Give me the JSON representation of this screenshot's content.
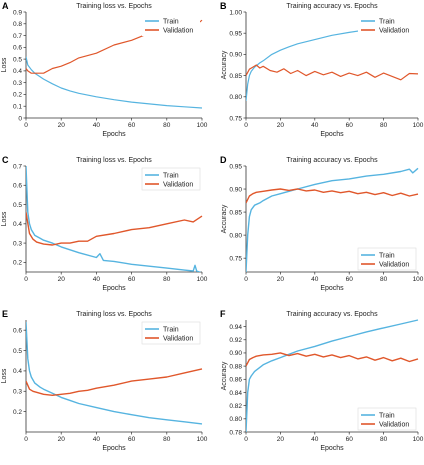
{
  "colors": {
    "train": "#56b4e0",
    "validation": "#e0572b"
  },
  "chart_data": [
    {
      "panel": "A",
      "type": "line",
      "title": "Training loss vs. Epochs",
      "xlabel": "Epochs",
      "ylabel": "Loss",
      "xlim": [
        0,
        100
      ],
      "ylim": [
        0,
        0.9
      ],
      "xticks": [
        0,
        20,
        40,
        60,
        80,
        100
      ],
      "yticks": [
        0,
        0.1,
        0.2,
        0.3,
        0.4,
        0.5,
        0.6,
        0.7,
        0.8,
        0.9
      ],
      "legend": "top-right",
      "legend_style": "plain",
      "series": [
        {
          "name": "Train",
          "color": "#56b4e0",
          "x": [
            0,
            1,
            3,
            5,
            10,
            15,
            20,
            25,
            30,
            40,
            50,
            60,
            70,
            80,
            90,
            100
          ],
          "y": [
            0.52,
            0.45,
            0.41,
            0.38,
            0.33,
            0.29,
            0.255,
            0.23,
            0.21,
            0.18,
            0.155,
            0.135,
            0.12,
            0.105,
            0.095,
            0.085
          ]
        },
        {
          "name": "Validation",
          "color": "#e0572b",
          "x": [
            0,
            1,
            3,
            5,
            10,
            15,
            20,
            25,
            30,
            40,
            50,
            60,
            70,
            76,
            80,
            85,
            90,
            95,
            100
          ],
          "y": [
            0.42,
            0.4,
            0.38,
            0.38,
            0.38,
            0.42,
            0.44,
            0.47,
            0.51,
            0.55,
            0.62,
            0.66,
            0.72,
            0.78,
            0.74,
            0.79,
            0.71,
            0.77,
            0.83
          ]
        }
      ]
    },
    {
      "panel": "B",
      "type": "line",
      "title": "Training accuracy vs. Epochs",
      "xlabel": "Epochs",
      "ylabel": "Accuracy",
      "xlim": [
        0,
        100
      ],
      "ylim": [
        0.75,
        1.0
      ],
      "xticks": [
        0,
        20,
        40,
        60,
        80,
        100
      ],
      "yticks": [
        0.75,
        0.8,
        0.85,
        0.9,
        0.95,
        1.0
      ],
      "legend": "top-right",
      "legend_style": "plain",
      "series": [
        {
          "name": "Train",
          "color": "#56b4e0",
          "x": [
            0,
            1,
            2,
            3,
            5,
            8,
            10,
            15,
            20,
            25,
            30,
            40,
            50,
            60,
            70
          ],
          "y": [
            0.79,
            0.83,
            0.85,
            0.86,
            0.87,
            0.88,
            0.885,
            0.9,
            0.91,
            0.918,
            0.925,
            0.935,
            0.945,
            0.952,
            0.958
          ]
        },
        {
          "name": "Validation",
          "color": "#e0572b",
          "x": [
            0,
            2,
            4,
            6,
            8,
            10,
            14,
            18,
            22,
            26,
            30,
            35,
            40,
            45,
            50,
            55,
            60,
            65,
            70,
            75,
            80,
            85,
            90,
            95,
            100
          ],
          "y": [
            0.85,
            0.865,
            0.87,
            0.875,
            0.868,
            0.872,
            0.862,
            0.858,
            0.866,
            0.855,
            0.862,
            0.85,
            0.86,
            0.852,
            0.858,
            0.848,
            0.856,
            0.85,
            0.858,
            0.846,
            0.856,
            0.848,
            0.84,
            0.855,
            0.854
          ]
        }
      ]
    },
    {
      "panel": "C",
      "type": "line",
      "title": "Training loss vs. Epochs",
      "xlabel": "Epochs",
      "ylabel": "Loss",
      "xlim": [
        0,
        100
      ],
      "ylim": [
        0.15,
        0.7
      ],
      "xticks": [
        0,
        20,
        40,
        60,
        80,
        100
      ],
      "yticks": [
        0.2,
        0.3,
        0.4,
        0.5,
        0.6,
        0.7
      ],
      "legend": "top-right",
      "legend_style": "box",
      "series": [
        {
          "name": "Train",
          "color": "#56b4e0",
          "x": [
            0,
            1,
            2,
            3,
            5,
            8,
            10,
            15,
            20,
            25,
            30,
            40,
            42,
            44,
            50,
            60,
            70,
            80,
            90,
            95,
            96,
            97,
            100
          ],
          "y": [
            0.7,
            0.46,
            0.4,
            0.37,
            0.34,
            0.325,
            0.315,
            0.3,
            0.28,
            0.265,
            0.25,
            0.225,
            0.245,
            0.21,
            0.205,
            0.19,
            0.18,
            0.17,
            0.16,
            0.155,
            0.185,
            0.155,
            0.145
          ]
        },
        {
          "name": "Validation",
          "color": "#e0572b",
          "x": [
            0,
            2,
            4,
            6,
            10,
            15,
            20,
            25,
            30,
            35,
            40,
            50,
            60,
            70,
            80,
            90,
            95,
            100
          ],
          "y": [
            0.46,
            0.35,
            0.32,
            0.305,
            0.295,
            0.29,
            0.3,
            0.3,
            0.31,
            0.31,
            0.335,
            0.35,
            0.37,
            0.38,
            0.4,
            0.42,
            0.41,
            0.44
          ]
        }
      ]
    },
    {
      "panel": "D",
      "type": "line",
      "title": "Training accuracy vs. Epochs",
      "xlabel": "Epochs",
      "ylabel": "Accuracy",
      "xlim": [
        0,
        100
      ],
      "ylim": [
        0.72,
        0.95
      ],
      "xticks": [
        0,
        20,
        40,
        60,
        80,
        100
      ],
      "yticks": [
        0.75,
        0.8,
        0.85,
        0.9,
        0.95
      ],
      "legend": "bottom-right",
      "legend_style": "box",
      "series": [
        {
          "name": "Train",
          "color": "#56b4e0",
          "x": [
            0,
            1,
            2,
            3,
            5,
            8,
            10,
            15,
            20,
            25,
            30,
            40,
            50,
            60,
            70,
            80,
            90,
            95,
            97,
            100
          ],
          "y": [
            0.72,
            0.8,
            0.84,
            0.855,
            0.865,
            0.87,
            0.875,
            0.885,
            0.89,
            0.895,
            0.9,
            0.91,
            0.918,
            0.922,
            0.928,
            0.932,
            0.938,
            0.943,
            0.935,
            0.945
          ]
        },
        {
          "name": "Validation",
          "color": "#e0572b",
          "x": [
            0,
            2,
            4,
            6,
            10,
            15,
            20,
            25,
            30,
            35,
            40,
            45,
            50,
            55,
            60,
            65,
            70,
            75,
            80,
            85,
            90,
            95,
            100
          ],
          "y": [
            0.87,
            0.885,
            0.89,
            0.893,
            0.895,
            0.898,
            0.9,
            0.897,
            0.9,
            0.896,
            0.898,
            0.893,
            0.896,
            0.892,
            0.895,
            0.89,
            0.893,
            0.888,
            0.892,
            0.886,
            0.891,
            0.885,
            0.889
          ]
        }
      ]
    },
    {
      "panel": "E",
      "type": "line",
      "title": "Training loss vs. Epochs",
      "xlabel": "Epochs",
      "ylabel": "Loss",
      "xlim": [
        0,
        100
      ],
      "ylim": [
        0.1,
        0.65
      ],
      "xticks": [
        0,
        20,
        40,
        60,
        80,
        100
      ],
      "yticks": [
        0.2,
        0.3,
        0.4,
        0.5,
        0.6
      ],
      "legend": "top-right",
      "legend_style": "box",
      "series": [
        {
          "name": "Train",
          "color": "#56b4e0",
          "x": [
            0,
            1,
            2,
            3,
            5,
            8,
            10,
            15,
            20,
            25,
            30,
            40,
            50,
            60,
            70,
            80,
            90,
            100
          ],
          "y": [
            0.64,
            0.46,
            0.4,
            0.37,
            0.34,
            0.32,
            0.31,
            0.29,
            0.27,
            0.255,
            0.24,
            0.22,
            0.2,
            0.185,
            0.17,
            0.16,
            0.15,
            0.14
          ]
        },
        {
          "name": "Validation",
          "color": "#e0572b",
          "x": [
            0,
            2,
            4,
            6,
            10,
            15,
            20,
            25,
            30,
            35,
            40,
            50,
            60,
            70,
            80,
            90,
            95,
            100
          ],
          "y": [
            0.35,
            0.31,
            0.3,
            0.295,
            0.285,
            0.28,
            0.285,
            0.29,
            0.3,
            0.305,
            0.315,
            0.33,
            0.35,
            0.36,
            0.37,
            0.39,
            0.4,
            0.41
          ]
        }
      ]
    },
    {
      "panel": "F",
      "type": "line",
      "title": "Training accuracy vs. Epochs",
      "xlabel": "Epochs",
      "ylabel": "Accuracy",
      "xlim": [
        0,
        100
      ],
      "ylim": [
        0.78,
        0.95
      ],
      "xticks": [
        0,
        20,
        40,
        60,
        80,
        100
      ],
      "yticks": [
        0.78,
        0.8,
        0.82,
        0.84,
        0.86,
        0.88,
        0.9,
        0.92,
        0.94
      ],
      "legend": "bottom-right",
      "legend_style": "box",
      "series": [
        {
          "name": "Train",
          "color": "#56b4e0",
          "x": [
            0,
            1,
            2,
            3,
            5,
            8,
            10,
            15,
            20,
            25,
            30,
            40,
            50,
            60,
            70,
            80,
            90,
            100
          ],
          "y": [
            0.78,
            0.84,
            0.86,
            0.865,
            0.872,
            0.878,
            0.882,
            0.888,
            0.893,
            0.898,
            0.903,
            0.91,
            0.918,
            0.925,
            0.932,
            0.938,
            0.944,
            0.95
          ]
        },
        {
          "name": "Validation",
          "color": "#e0572b",
          "x": [
            0,
            2,
            4,
            6,
            10,
            15,
            20,
            25,
            30,
            35,
            40,
            45,
            50,
            55,
            60,
            65,
            70,
            75,
            80,
            85,
            90,
            95,
            100
          ],
          "y": [
            0.88,
            0.89,
            0.893,
            0.895,
            0.897,
            0.898,
            0.9,
            0.896,
            0.899,
            0.895,
            0.898,
            0.894,
            0.897,
            0.893,
            0.896,
            0.891,
            0.894,
            0.889,
            0.893,
            0.888,
            0.892,
            0.887,
            0.891
          ]
        }
      ]
    }
  ]
}
